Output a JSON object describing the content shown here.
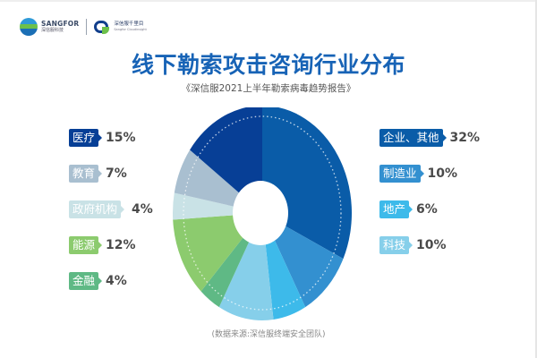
{
  "header": {
    "logo_primary_en": "SANGFOR",
    "logo_primary_cn": "深信服科技",
    "logo_secondary_cn": "深信服千里目",
    "logo_secondary_en": "Sangfor Cloudinsight"
  },
  "title": "线下勒索攻击咨询行业分布",
  "subtitle": "《深信服2021上半年勒索病毒趋势报告》",
  "source": "(数据来源:深信服终端安全团队)",
  "legend_left": [
    {
      "label": "医疗",
      "pct": "15%",
      "color": "#073f96"
    },
    {
      "label": "教育",
      "pct": "7%",
      "color": "#a9bfd0"
    },
    {
      "label": "政府机构",
      "pct": "4%",
      "color": "#c9e2e6"
    },
    {
      "label": "能源",
      "pct": "12%",
      "color": "#8ccb6e"
    },
    {
      "label": "金融",
      "pct": "4%",
      "color": "#5fb985"
    }
  ],
  "legend_right": [
    {
      "label": "企业、其他",
      "pct": "32%",
      "color": "#0a5ca8"
    },
    {
      "label": "制造业",
      "pct": "10%",
      "color": "#3390d0"
    },
    {
      "label": "地产",
      "pct": "6%",
      "color": "#3dbaea"
    },
    {
      "label": "科技",
      "pct": "10%",
      "color": "#86cfea"
    }
  ],
  "chart_data": {
    "type": "pie",
    "subtype": "donut",
    "title": "线下勒索攻击咨询行业分布",
    "subtitle": "《深信服2021上半年勒索病毒趋势报告》",
    "categories": [
      "企业、其他",
      "制造业",
      "地产",
      "科技",
      "金融",
      "能源",
      "政府机构",
      "教育",
      "医疗"
    ],
    "values": [
      32,
      10,
      6,
      10,
      4,
      12,
      4,
      7,
      15
    ],
    "unit": "%",
    "colors": [
      "#0a5ca8",
      "#3390d0",
      "#3dbaea",
      "#86cfea",
      "#5fb985",
      "#8ccb6e",
      "#c9e2e6",
      "#a9bfd0",
      "#073f96"
    ],
    "legend_position": "left-and-right",
    "annotation": "(数据来源:深信服终端安全团队)"
  }
}
